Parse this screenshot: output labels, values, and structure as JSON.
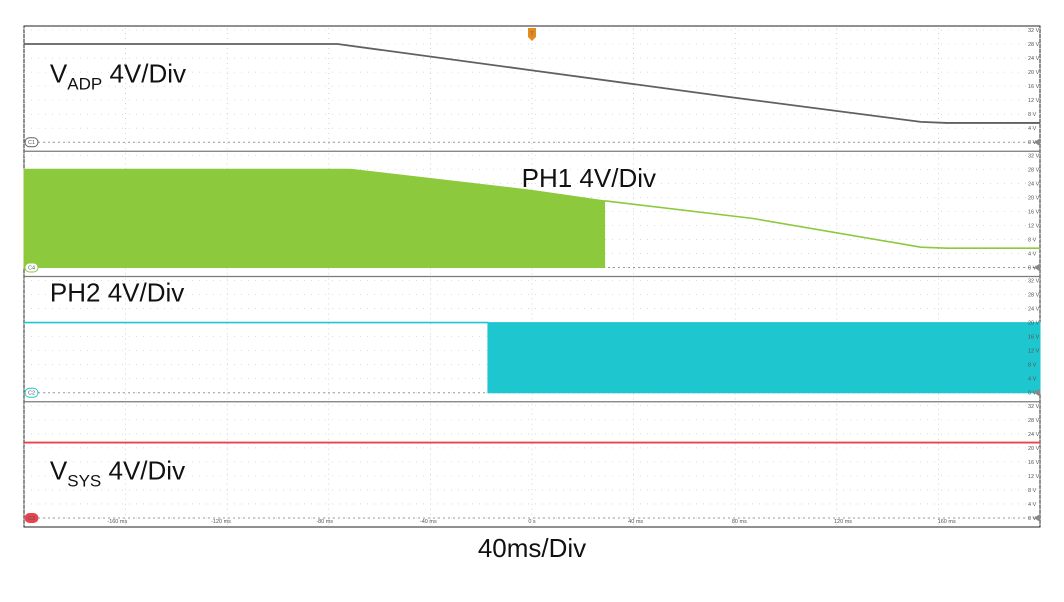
{
  "chart_data": {
    "type": "line",
    "x_unit": "ms",
    "x_range": [
      -196,
      196
    ],
    "x_tick_labels": [
      "-160 ms",
      "-120 ms",
      "-80 ms",
      "-40 ms",
      "0 s",
      "40 ms",
      "80 ms",
      "120 ms",
      "160 ms"
    ],
    "x_tick_values": [
      -160,
      -120,
      -80,
      -40,
      0,
      40,
      80,
      120,
      160
    ],
    "xlabel": "40ms/Div",
    "trigger_marker": "T",
    "grid": true,
    "panels": [
      {
        "channel": "C1",
        "name_main": "V",
        "name_sub": "ADP",
        "scale_text": " 4V/Div",
        "color": "#606060",
        "y_range": [
          -2,
          32
        ],
        "y_tick_labels": [
          "32 V",
          "28 V",
          "24 V",
          "20 V",
          "16 V",
          "12 V",
          "8 V",
          "4 V",
          "0 V"
        ],
        "y_tick_values": [
          32,
          28,
          24,
          20,
          16,
          12,
          8,
          4,
          0
        ],
        "label_x_ms": -186,
        "label_y_v": 17,
        "mode": "line",
        "line": {
          "x": [
            -196,
            -75,
            0,
            75,
            150,
            160,
            196
          ],
          "y": [
            28,
            28,
            20.5,
            13,
            5.8,
            5.5,
            5.5
          ]
        }
      },
      {
        "channel": "C4",
        "name_main": "PH1",
        "name_sub": "",
        "scale_text": " 4V/Div",
        "color": "#8dc93d",
        "y_range": [
          -2,
          32
        ],
        "y_tick_labels": [
          "32 V",
          "28 V",
          "24 V",
          "20 V",
          "16 V",
          "12 V",
          "8 V",
          "4 V",
          "0 V"
        ],
        "y_tick_values": [
          32,
          28,
          24,
          20,
          16,
          12,
          8,
          4,
          0
        ],
        "label_x_ms": -4,
        "label_y_v": 23,
        "mode": "switching",
        "filled": {
          "x": [
            -196,
            -70,
            0,
            28
          ],
          "y": [
            28,
            28,
            22,
            19
          ],
          "x_end": 28
        },
        "line": {
          "x": [
            28,
            85,
            150,
            160,
            196
          ],
          "y": [
            19,
            14,
            5.8,
            5.5,
            5.5
          ]
        }
      },
      {
        "channel": "C2",
        "name_main": "PH2",
        "name_sub": "",
        "scale_text": " 4V/Div",
        "color": "#1ec6cf",
        "y_range": [
          -2,
          32
        ],
        "y_tick_labels": [
          "32 V",
          "28 V",
          "24 V",
          "20 V",
          "16 V",
          "12 V",
          "8 V",
          "4 V",
          "0 V"
        ],
        "y_tick_values": [
          32,
          28,
          24,
          20,
          16,
          12,
          8,
          4,
          0
        ],
        "label_x_ms": -186,
        "label_y_v": 26,
        "mode": "switching",
        "line": {
          "x": [
            -196,
            -17
          ],
          "y": [
            20,
            20
          ]
        },
        "filled": {
          "x": [
            -17,
            196
          ],
          "y": [
            20,
            20
          ],
          "x_end": 196
        }
      },
      {
        "channel": "C3",
        "name_main": "V",
        "name_sub": "SYS",
        "scale_text": " 4V/Div",
        "color": "#e8434e",
        "y_range": [
          -2,
          32
        ],
        "y_tick_labels": [
          "32 V",
          "28 V",
          "24 V",
          "20 V",
          "16 V",
          "12 V",
          "8 V",
          "4 V",
          "0 V"
        ],
        "y_tick_values": [
          32,
          28,
          24,
          20,
          16,
          12,
          8,
          4,
          0
        ],
        "label_x_ms": -186,
        "label_y_v": 11,
        "mode": "line",
        "line": {
          "x": [
            -196,
            196
          ],
          "y": [
            21.5,
            21.5
          ]
        }
      }
    ]
  }
}
